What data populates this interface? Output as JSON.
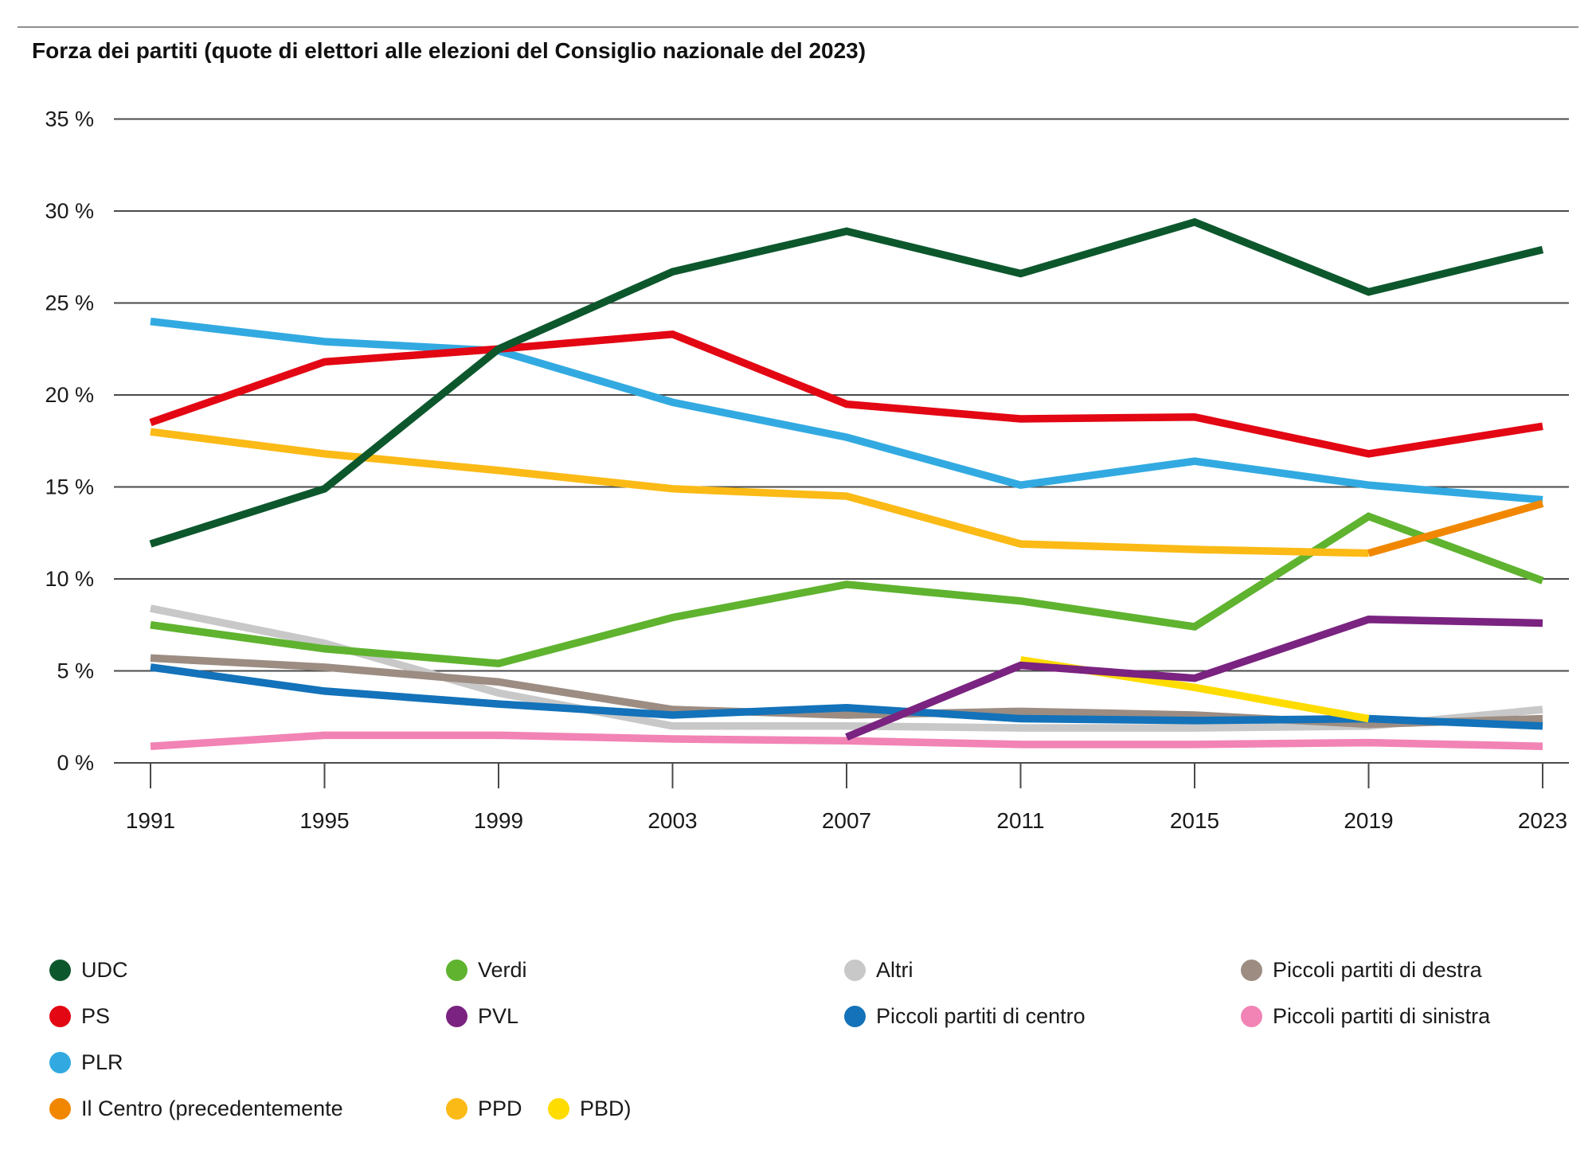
{
  "title": "Forza dei partiti (quote di elettori alle elezioni del Consiglio nazionale del 2023)",
  "chart_data": {
    "type": "line",
    "title": "Forza dei partiti (quote di elettori alle elezioni del Consiglio nazionale del 2023)",
    "x": [
      1991,
      1995,
      1999,
      2003,
      2007,
      2011,
      2015,
      2019,
      2023
    ],
    "x_tick_labels": [
      "1991",
      "1995",
      "1999",
      "2003",
      "2007",
      "2011",
      "2015",
      "2019",
      "2023"
    ],
    "y_ticks": [
      {
        "value": 35,
        "label": "35 %"
      },
      {
        "value": 30,
        "label": "30 %"
      },
      {
        "value": 25,
        "label": "25 %"
      },
      {
        "value": 20,
        "label": "20 %"
      },
      {
        "value": 15,
        "label": "15 %"
      },
      {
        "value": 10,
        "label": "10 %"
      },
      {
        "value": 5,
        "label": "5 %"
      },
      {
        "value": 0,
        "label": "0 %"
      }
    ],
    "ylim": [
      0,
      35
    ],
    "grid": "horizontal",
    "legend_position": "bottom",
    "series": [
      {
        "name": "Altri",
        "color": "#c8c8c8",
        "values": [
          8.4,
          6.5,
          3.8,
          2.0,
          2.0,
          1.9,
          1.9,
          2.0,
          2.9
        ]
      },
      {
        "name": "Piccoli partiti di destra",
        "color": "#9c8c82",
        "values": [
          5.7,
          5.2,
          4.4,
          2.9,
          2.6,
          2.8,
          2.6,
          2.1,
          2.4
        ]
      },
      {
        "name": "Piccoli partiti di centro",
        "color": "#1372b9",
        "values": [
          5.2,
          3.9,
          3.2,
          2.6,
          3.0,
          2.4,
          2.3,
          2.4,
          2.0
        ]
      },
      {
        "name": "Piccoli partiti di sinistra",
        "color": "#f283b5",
        "values": [
          0.9,
          1.5,
          1.5,
          1.3,
          1.2,
          1.0,
          1.0,
          1.1,
          0.9
        ]
      },
      {
        "name": "PBD",
        "color": "#ffdc00",
        "values": [
          null,
          null,
          null,
          null,
          null,
          5.6,
          4.1,
          2.4,
          null
        ]
      },
      {
        "name": "PVL",
        "color": "#7a2380",
        "values": [
          null,
          null,
          null,
          null,
          1.4,
          5.3,
          4.6,
          7.8,
          7.6
        ]
      },
      {
        "name": "Verdi",
        "color": "#5fb32f",
        "values": [
          7.5,
          6.2,
          5.4,
          7.9,
          9.7,
          8.8,
          7.4,
          13.4,
          9.9
        ]
      },
      {
        "name": "PPD",
        "color": "#fbba16",
        "values": [
          18.0,
          16.8,
          15.9,
          14.9,
          14.5,
          11.9,
          11.6,
          11.4,
          null
        ]
      },
      {
        "name": "PLR",
        "color": "#32aae1",
        "values": [
          24.0,
          22.9,
          22.4,
          19.6,
          17.7,
          15.1,
          16.4,
          15.1,
          14.3
        ]
      },
      {
        "name": "Il Centro",
        "color": "#f18700",
        "values": [
          null,
          null,
          null,
          null,
          null,
          null,
          null,
          11.4,
          14.1
        ]
      },
      {
        "name": "PS",
        "color": "#e30613",
        "values": [
          18.5,
          21.8,
          22.5,
          23.3,
          19.5,
          18.7,
          18.8,
          16.8,
          18.3
        ]
      },
      {
        "name": "UDC",
        "color": "#0d572d",
        "values": [
          11.9,
          14.9,
          22.5,
          26.7,
          28.9,
          26.6,
          29.4,
          25.6,
          27.9
        ]
      }
    ]
  },
  "legend": {
    "udc": {
      "label": "UDC",
      "series": 11
    },
    "ps": {
      "label": "PS",
      "series": 10
    },
    "plr": {
      "label": "PLR",
      "series": 8
    },
    "centro": {
      "label": "Il Centro (precedentemente",
      "series": 9
    },
    "verdi": {
      "label": "Verdi",
      "series": 6
    },
    "pvl": {
      "label": "PVL",
      "series": 5
    },
    "ppd": {
      "label": "PPD",
      "series": 7
    },
    "pbd": {
      "label": "PBD)",
      "series": 4
    },
    "altri": {
      "label": "Altri",
      "series": 0
    },
    "pcentro": {
      "label": "Piccoli partiti di centro",
      "series": 2
    },
    "pdestra": {
      "label": "Piccoli partiti di destra",
      "series": 1
    },
    "psinistra": {
      "label": "Piccoli partiti di sinistra",
      "series": 3
    }
  }
}
